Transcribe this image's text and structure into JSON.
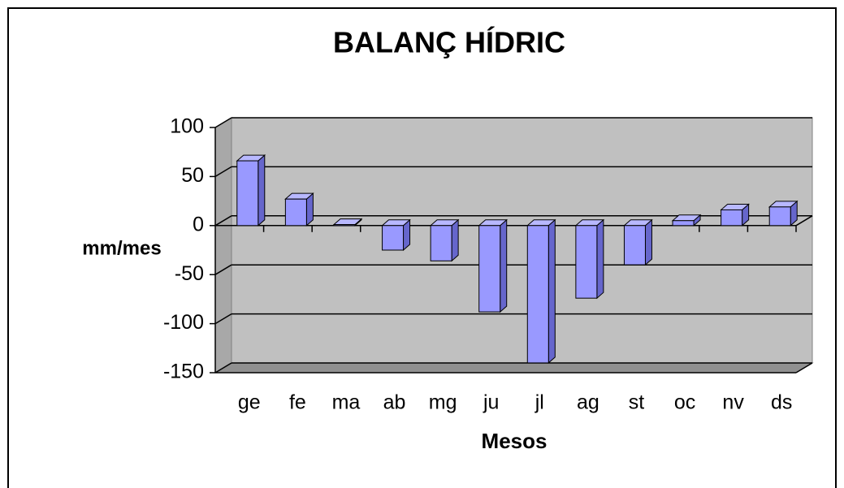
{
  "chart_data": {
    "type": "bar",
    "title": "BALANÇ HÍDRIC",
    "categories": [
      "ge",
      "fe",
      "ma",
      "ab",
      "mg",
      "ju",
      "jl",
      "ag",
      "st",
      "oc",
      "nv",
      "ds"
    ],
    "values": [
      66,
      27,
      1,
      -25,
      -36,
      -88,
      -140,
      -74,
      -40,
      5,
      16,
      19
    ],
    "color": "#9999ff",
    "ylim": [
      -150,
      100
    ],
    "yticks": [
      -150,
      -100,
      -50,
      0,
      50,
      100
    ],
    "xlabel": "Mesos",
    "ylabel": "mm/mes",
    "grid": true
  }
}
